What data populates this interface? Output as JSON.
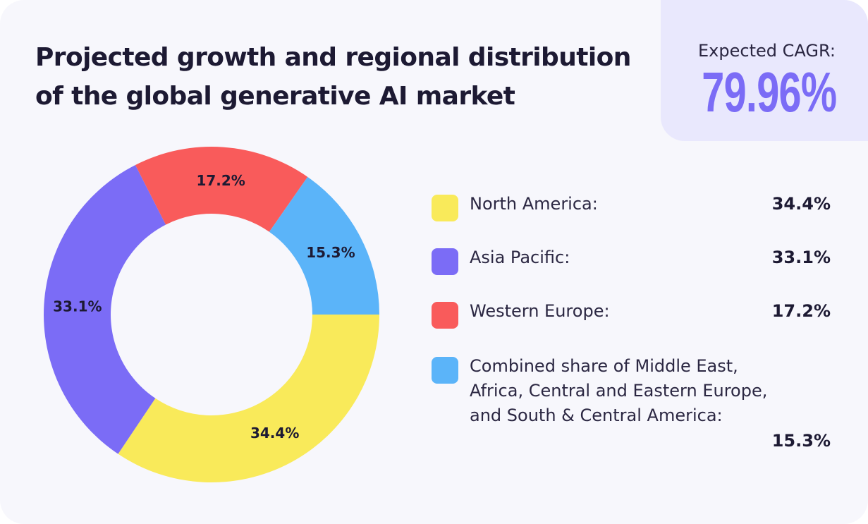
{
  "header": {
    "title_line1": "Projected growth and regional distribution",
    "title_line2": "of the global generative AI market"
  },
  "cagr": {
    "label": "Expected CAGR:",
    "value": "79.96%",
    "accent_color": "#7b6cf6",
    "background_color": "#e9e8fd"
  },
  "chart_data": {
    "type": "pie",
    "donut": true,
    "title": "Projected growth and regional distribution of the global generative AI market",
    "legend_position": "right",
    "slices": [
      {
        "label": "North America:",
        "value": 34.4,
        "display": "34.4%",
        "color": "#f9ea5a"
      },
      {
        "label": "Asia Pacific:",
        "value": 33.1,
        "display": "33.1%",
        "color": "#7b6cf6"
      },
      {
        "label": "Western Europe:",
        "value": 17.2,
        "display": "17.2%",
        "color": "#f95b5b"
      },
      {
        "label": "Combined share of Middle East, Africa, Central and Eastern Europe, and South & Central America:",
        "value": 15.3,
        "display": "15.3%",
        "color": "#5bb4f9"
      }
    ]
  },
  "legend": {
    "items": [
      {
        "label": "North America:",
        "value": "34.4%"
      },
      {
        "label": "Asia Pacific:",
        "value": "33.1%"
      },
      {
        "label": "Western Europe:",
        "value": "17.2%"
      },
      {
        "label": "Combined share of Middle East, Africa, Central and Eastern Europe, and South & Central America:",
        "value": "15.3%"
      }
    ]
  }
}
